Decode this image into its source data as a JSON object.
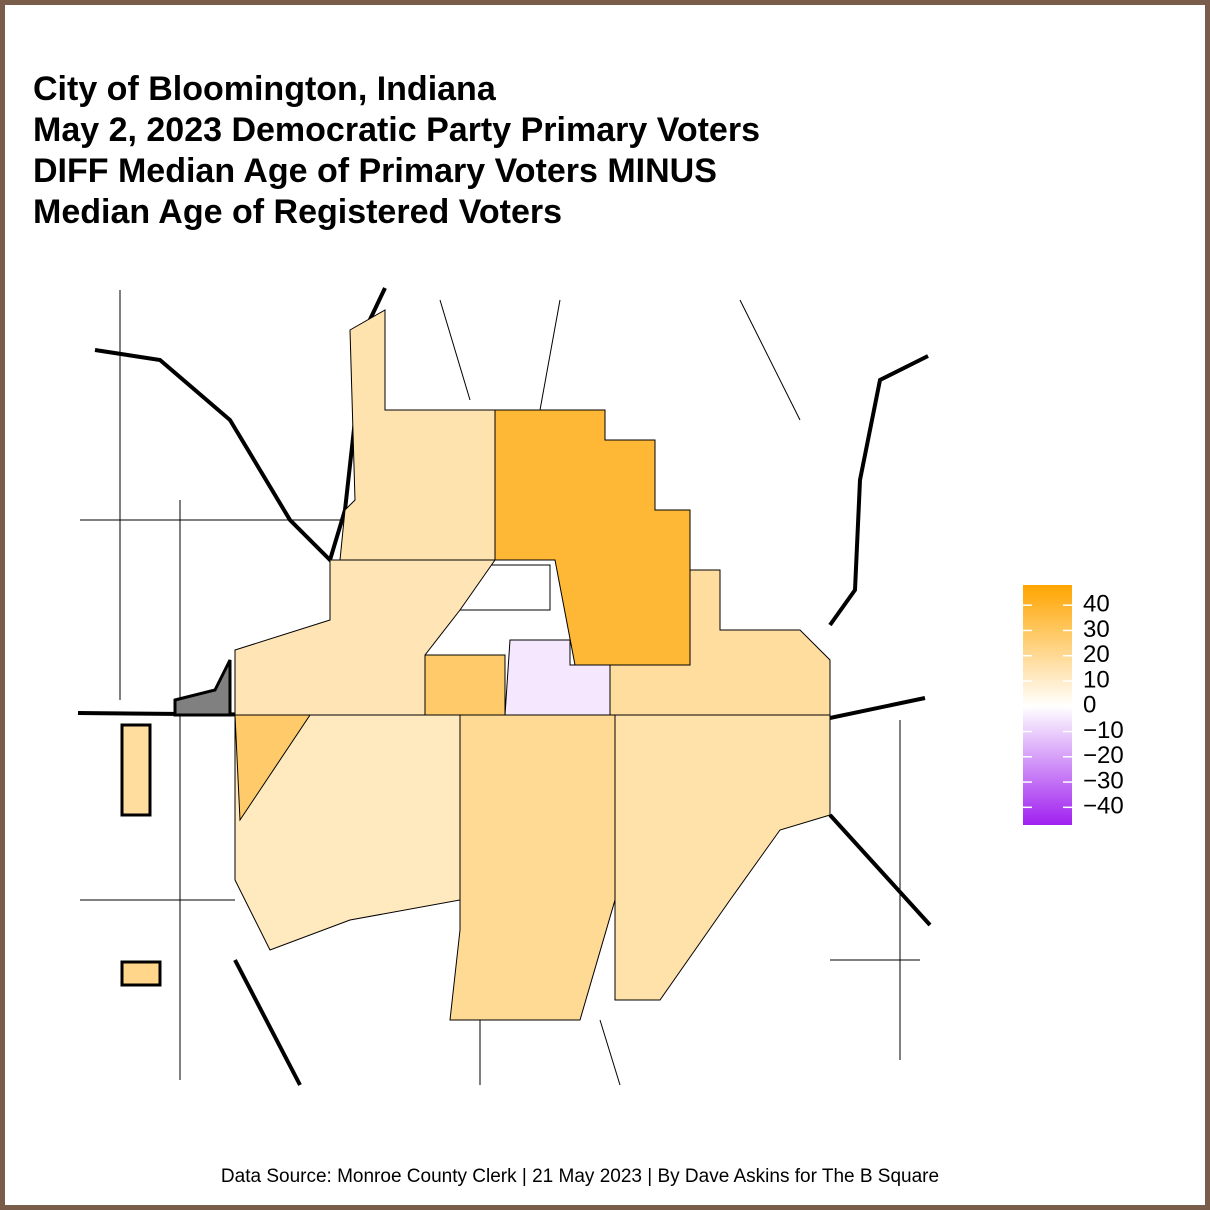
{
  "title_lines": [
    "City of Bloomington, Indiana",
    "May 2, 2023 Democratic Party Primary Voters",
    "DIFF Median Age of Primary Voters MINUS",
    "Median Age of Registered Voters"
  ],
  "caption": "Data Source: Monroe County Clerk | 21 May 2023 | By Dave Askins for The B Square",
  "legend": {
    "lim": [
      -47,
      48
    ],
    "ticks": [
      40,
      30,
      20,
      10,
      0,
      {
        "value": -10,
        "label": "−10"
      },
      {
        "value": -20,
        "label": "−20"
      },
      {
        "value": -30,
        "label": "−30"
      },
      {
        "value": -40,
        "label": "−40"
      }
    ],
    "colormap": [
      "#a020f0",
      "#ffffff",
      "#ffa500"
    ],
    "na_color": "#808080"
  },
  "regions": {
    "values": [
      15,
      38,
      0,
      -5,
      28,
      18,
      14,
      null,
      12,
      20,
      16,
      28,
      18,
      22
    ]
  }
}
